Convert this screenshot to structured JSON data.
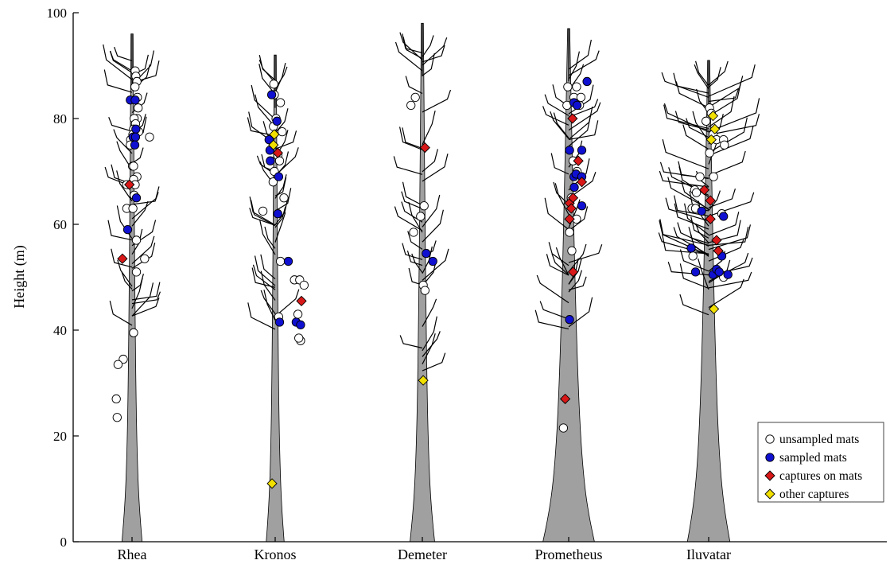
{
  "chart_data": {
    "type": "scatter",
    "ylabel": "Height (m)",
    "ylim": [
      0,
      100
    ],
    "yticks": [
      0,
      20,
      40,
      60,
      80,
      100
    ],
    "categories": [
      "Rhea",
      "Kronos",
      "Demeter",
      "Prometheus",
      "Iluvatar"
    ],
    "trees": [
      {
        "name": "Rhea",
        "crown_top": 96,
        "base_half_width": 0.18,
        "top_half_width": 0.02
      },
      {
        "name": "Kronos",
        "crown_top": 92,
        "base_half_width": 0.16,
        "top_half_width": 0.02
      },
      {
        "name": "Demeter",
        "crown_top": 98,
        "base_half_width": 0.22,
        "top_half_width": 0.02
      },
      {
        "name": "Prometheus",
        "crown_top": 97,
        "base_half_width": 0.46,
        "top_half_width": 0.02
      },
      {
        "name": "Iluvatar",
        "crown_top": 91,
        "base_half_width": 0.38,
        "top_half_width": 0.02
      }
    ],
    "legend_position": "bottom-right",
    "series": [
      {
        "name": "unsampled mats",
        "marker": "circle",
        "color": "#ffffff",
        "points": [
          {
            "tree": "Rhea",
            "offset": 0.18,
            "y": 89
          },
          {
            "tree": "Rhea",
            "offset": 0.22,
            "y": 88
          },
          {
            "tree": "Rhea",
            "offset": 0.28,
            "y": 87
          },
          {
            "tree": "Rhea",
            "offset": 0.17,
            "y": 86
          },
          {
            "tree": "Rhea",
            "offset": 0.31,
            "y": 84
          },
          {
            "tree": "Rhea",
            "offset": 0.35,
            "y": 82
          },
          {
            "tree": "Rhea",
            "offset": 0.3,
            "y": 80
          },
          {
            "tree": "Rhea",
            "offset": 0.12,
            "y": 80
          },
          {
            "tree": "Rhea",
            "offset": 0.2,
            "y": 79
          },
          {
            "tree": "Rhea",
            "offset": 0.09,
            "y": 78
          },
          {
            "tree": "Rhea",
            "offset": 0.38,
            "y": 77.5
          },
          {
            "tree": "Rhea",
            "offset": -0.08,
            "y": 76
          },
          {
            "tree": "Rhea",
            "offset": -0.1,
            "y": 75
          },
          {
            "tree": "Rhea",
            "offset": 0.05,
            "y": 77
          },
          {
            "tree": "Rhea",
            "offset": 1.0,
            "y": 76.5
          },
          {
            "tree": "Rhea",
            "offset": 0.03,
            "y": 71
          },
          {
            "tree": "Rhea",
            "offset": 0.09,
            "y": 71
          },
          {
            "tree": "Rhea",
            "offset": 0.28,
            "y": 69
          },
          {
            "tree": "Rhea",
            "offset": 0.09,
            "y": 68.5
          },
          {
            "tree": "Rhea",
            "offset": 0.18,
            "y": 67.5
          },
          {
            "tree": "Rhea",
            "offset": -0.3,
            "y": 67.5
          },
          {
            "tree": "Rhea",
            "offset": 0.12,
            "y": 65.5
          },
          {
            "tree": "Rhea",
            "offset": -0.3,
            "y": 63
          },
          {
            "tree": "Rhea",
            "offset": 0.05,
            "y": 63
          },
          {
            "tree": "Rhea",
            "offset": 0.25,
            "y": 57
          },
          {
            "tree": "Rhea",
            "offset": 0.25,
            "y": 51
          },
          {
            "tree": "Rhea",
            "offset": 0.72,
            "y": 53.5
          },
          {
            "tree": "Rhea",
            "offset": 0.09,
            "y": 39.5
          },
          {
            "tree": "Rhea",
            "offset": -0.5,
            "y": 34.5
          },
          {
            "tree": "Rhea",
            "offset": -0.8,
            "y": 33.5
          },
          {
            "tree": "Rhea",
            "offset": -0.9,
            "y": 27
          },
          {
            "tree": "Rhea",
            "offset": -0.85,
            "y": 23.5
          },
          {
            "tree": "Kronos",
            "offset": -0.08,
            "y": 86.5
          },
          {
            "tree": "Kronos",
            "offset": -0.05,
            "y": 84.5
          },
          {
            "tree": "Kronos",
            "offset": 0.3,
            "y": 83
          },
          {
            "tree": "Kronos",
            "offset": -0.1,
            "y": 78.5
          },
          {
            "tree": "Kronos",
            "offset": 0.05,
            "y": 80
          },
          {
            "tree": "Kronos",
            "offset": 0.4,
            "y": 77.5
          },
          {
            "tree": "Kronos",
            "offset": 0.15,
            "y": 73
          },
          {
            "tree": "Kronos",
            "offset": 0.25,
            "y": 72
          },
          {
            "tree": "Kronos",
            "offset": -0.05,
            "y": 70
          },
          {
            "tree": "Kronos",
            "offset": -0.12,
            "y": 68
          },
          {
            "tree": "Kronos",
            "offset": 0.5,
            "y": 65
          },
          {
            "tree": "Kronos",
            "offset": -0.7,
            "y": 62.5
          },
          {
            "tree": "Kronos",
            "offset": 0.3,
            "y": 53
          },
          {
            "tree": "Kronos",
            "offset": 1.1,
            "y": 49.5
          },
          {
            "tree": "Kronos",
            "offset": 1.4,
            "y": 49.5
          },
          {
            "tree": "Kronos",
            "offset": 1.65,
            "y": 48.5
          },
          {
            "tree": "Kronos",
            "offset": 1.3,
            "y": 43
          },
          {
            "tree": "Kronos",
            "offset": 1.45,
            "y": 38
          },
          {
            "tree": "Kronos",
            "offset": 1.35,
            "y": 38.5
          },
          {
            "tree": "Kronos",
            "offset": 0.2,
            "y": 42.5
          },
          {
            "tree": "Demeter",
            "offset": -0.4,
            "y": 84
          },
          {
            "tree": "Demeter",
            "offset": -0.65,
            "y": 82.5
          },
          {
            "tree": "Demeter",
            "offset": 0.1,
            "y": 63.5
          },
          {
            "tree": "Demeter",
            "offset": -0.1,
            "y": 61.5
          },
          {
            "tree": "Demeter",
            "offset": -0.5,
            "y": 58.5
          },
          {
            "tree": "Demeter",
            "offset": 0.05,
            "y": 48.5
          },
          {
            "tree": "Demeter",
            "offset": 0.15,
            "y": 47.5
          },
          {
            "tree": "Prometheus",
            "offset": -0.05,
            "y": 86
          },
          {
            "tree": "Prometheus",
            "offset": 0.45,
            "y": 86
          },
          {
            "tree": "Prometheus",
            "offset": 0.3,
            "y": 84
          },
          {
            "tree": "Prometheus",
            "offset": 0.7,
            "y": 84
          },
          {
            "tree": "Prometheus",
            "offset": 0.62,
            "y": 82.5
          },
          {
            "tree": "Prometheus",
            "offset": -0.1,
            "y": 82.5
          },
          {
            "tree": "Prometheus",
            "offset": 0.25,
            "y": 72
          },
          {
            "tree": "Prometheus",
            "offset": 0.48,
            "y": 70
          },
          {
            "tree": "Prometheus",
            "offset": 0.15,
            "y": 65
          },
          {
            "tree": "Prometheus",
            "offset": 0.45,
            "y": 61
          },
          {
            "tree": "Prometheus",
            "offset": 0.05,
            "y": 58.5
          },
          {
            "tree": "Prometheus",
            "offset": 0.18,
            "y": 55
          },
          {
            "tree": "Prometheus",
            "offset": -0.3,
            "y": 21.5
          },
          {
            "tree": "Iluvatar",
            "offset": 0.05,
            "y": 82
          },
          {
            "tree": "Iluvatar",
            "offset": 0.15,
            "y": 81
          },
          {
            "tree": "Iluvatar",
            "offset": -0.15,
            "y": 79.5
          },
          {
            "tree": "Iluvatar",
            "offset": 0.25,
            "y": 77
          },
          {
            "tree": "Iluvatar",
            "offset": 0.45,
            "y": 76
          },
          {
            "tree": "Iluvatar",
            "offset": 0.85,
            "y": 76
          },
          {
            "tree": "Iluvatar",
            "offset": 0.9,
            "y": 75
          },
          {
            "tree": "Iluvatar",
            "offset": 0.05,
            "y": 73.5
          },
          {
            "tree": "Iluvatar",
            "offset": -0.5,
            "y": 69
          },
          {
            "tree": "Iluvatar",
            "offset": 0.28,
            "y": 69
          },
          {
            "tree": "Iluvatar",
            "offset": -0.8,
            "y": 66.5
          },
          {
            "tree": "Iluvatar",
            "offset": -0.7,
            "y": 66
          },
          {
            "tree": "Iluvatar",
            "offset": -0.95,
            "y": 63
          },
          {
            "tree": "Iluvatar",
            "offset": -0.75,
            "y": 63
          },
          {
            "tree": "Iluvatar",
            "offset": 0.75,
            "y": 62
          },
          {
            "tree": "Iluvatar",
            "offset": -0.9,
            "y": 54
          },
          {
            "tree": "Iluvatar",
            "offset": 0.85,
            "y": 50
          }
        ]
      },
      {
        "name": "sampled mats",
        "marker": "circle",
        "color": "#1010d0",
        "points": [
          {
            "tree": "Rhea",
            "offset": -0.1,
            "y": 83.5
          },
          {
            "tree": "Rhea",
            "offset": 0.18,
            "y": 83.5
          },
          {
            "tree": "Rhea",
            "offset": 0.22,
            "y": 78
          },
          {
            "tree": "Rhea",
            "offset": 0.06,
            "y": 76.5
          },
          {
            "tree": "Rhea",
            "offset": 0.2,
            "y": 76.5
          },
          {
            "tree": "Rhea",
            "offset": 0.16,
            "y": 75
          },
          {
            "tree": "Rhea",
            "offset": 0.25,
            "y": 65
          },
          {
            "tree": "Rhea",
            "offset": -0.25,
            "y": 59
          },
          {
            "tree": "Kronos",
            "offset": -0.2,
            "y": 84.5
          },
          {
            "tree": "Kronos",
            "offset": 0.1,
            "y": 79.5
          },
          {
            "tree": "Kronos",
            "offset": -0.35,
            "y": 76
          },
          {
            "tree": "Kronos",
            "offset": -0.3,
            "y": 74
          },
          {
            "tree": "Kronos",
            "offset": -0.28,
            "y": 72
          },
          {
            "tree": "Kronos",
            "offset": 0.2,
            "y": 69
          },
          {
            "tree": "Kronos",
            "offset": 0.15,
            "y": 62
          },
          {
            "tree": "Kronos",
            "offset": 0.75,
            "y": 53
          },
          {
            "tree": "Kronos",
            "offset": 0.25,
            "y": 41.5
          },
          {
            "tree": "Kronos",
            "offset": 1.2,
            "y": 41.5
          },
          {
            "tree": "Kronos",
            "offset": 1.45,
            "y": 41
          },
          {
            "tree": "Demeter",
            "offset": 0.22,
            "y": 54.5
          },
          {
            "tree": "Demeter",
            "offset": 0.6,
            "y": 53
          },
          {
            "tree": "Prometheus",
            "offset": 0.3,
            "y": 83
          },
          {
            "tree": "Prometheus",
            "offset": 0.48,
            "y": 82.5
          },
          {
            "tree": "Prometheus",
            "offset": 1.05,
            "y": 87
          },
          {
            "tree": "Prometheus",
            "offset": 0.05,
            "y": 74
          },
          {
            "tree": "Prometheus",
            "offset": 0.75,
            "y": 74
          },
          {
            "tree": "Prometheus",
            "offset": 0.3,
            "y": 69
          },
          {
            "tree": "Prometheus",
            "offset": 0.42,
            "y": 69.5
          },
          {
            "tree": "Prometheus",
            "offset": 0.75,
            "y": 69
          },
          {
            "tree": "Prometheus",
            "offset": 0.32,
            "y": 67
          },
          {
            "tree": "Prometheus",
            "offset": 0.75,
            "y": 63.5
          },
          {
            "tree": "Prometheus",
            "offset": 0.05,
            "y": 42
          },
          {
            "tree": "Iluvatar",
            "offset": 0.85,
            "y": 61.5
          },
          {
            "tree": "Iluvatar",
            "offset": -0.4,
            "y": 62.5
          },
          {
            "tree": "Iluvatar",
            "offset": -1.0,
            "y": 55.5
          },
          {
            "tree": "Iluvatar",
            "offset": 0.75,
            "y": 54
          },
          {
            "tree": "Iluvatar",
            "offset": -0.75,
            "y": 51
          },
          {
            "tree": "Iluvatar",
            "offset": 0.25,
            "y": 50.5
          },
          {
            "tree": "Iluvatar",
            "offset": 0.45,
            "y": 51.5
          },
          {
            "tree": "Iluvatar",
            "offset": 0.6,
            "y": 51
          },
          {
            "tree": "Iluvatar",
            "offset": 1.1,
            "y": 50.5
          }
        ]
      },
      {
        "name": "captures on mats",
        "marker": "diamond",
        "color": "#d81818",
        "points": [
          {
            "tree": "Rhea",
            "offset": -0.15,
            "y": 67.5
          },
          {
            "tree": "Rhea",
            "offset": -0.55,
            "y": 53.5
          },
          {
            "tree": "Kronos",
            "offset": 0.15,
            "y": 73.5
          },
          {
            "tree": "Kronos",
            "offset": 1.5,
            "y": 45.5
          },
          {
            "tree": "Demeter",
            "offset": 0.15,
            "y": 74.5
          },
          {
            "tree": "Prometheus",
            "offset": 0.22,
            "y": 80
          },
          {
            "tree": "Prometheus",
            "offset": 0.55,
            "y": 72
          },
          {
            "tree": "Prometheus",
            "offset": 0.75,
            "y": 68
          },
          {
            "tree": "Prometheus",
            "offset": 0.05,
            "y": 64
          },
          {
            "tree": "Prometheus",
            "offset": 0.25,
            "y": 65
          },
          {
            "tree": "Prometheus",
            "offset": 0.15,
            "y": 63
          },
          {
            "tree": "Prometheus",
            "offset": 0.05,
            "y": 61
          },
          {
            "tree": "Prometheus",
            "offset": 0.25,
            "y": 51
          },
          {
            "tree": "Prometheus",
            "offset": -0.2,
            "y": 27
          },
          {
            "tree": "Iluvatar",
            "offset": -0.25,
            "y": 66.5
          },
          {
            "tree": "Iluvatar",
            "offset": 0.1,
            "y": 64.5
          },
          {
            "tree": "Iluvatar",
            "offset": 0.1,
            "y": 61
          },
          {
            "tree": "Iluvatar",
            "offset": 0.45,
            "y": 57
          },
          {
            "tree": "Iluvatar",
            "offset": 0.55,
            "y": 55
          }
        ]
      },
      {
        "name": "other captures",
        "marker": "diamond",
        "color": "#f2e000",
        "points": [
          {
            "tree": "Kronos",
            "offset": -0.05,
            "y": 77
          },
          {
            "tree": "Kronos",
            "offset": -0.1,
            "y": 75
          },
          {
            "tree": "Kronos",
            "offset": -0.18,
            "y": 11
          },
          {
            "tree": "Demeter",
            "offset": 0.05,
            "y": 30.5
          },
          {
            "tree": "Iluvatar",
            "offset": 0.25,
            "y": 80.5
          },
          {
            "tree": "Iluvatar",
            "offset": 0.35,
            "y": 78
          },
          {
            "tree": "Iluvatar",
            "offset": 0.15,
            "y": 76
          },
          {
            "tree": "Iluvatar",
            "offset": 0.3,
            "y": 44
          }
        ]
      }
    ]
  },
  "legend": {
    "items": [
      {
        "label": "unsampled mats",
        "marker": "circle",
        "color": "#ffffff"
      },
      {
        "label": "sampled mats",
        "marker": "circle",
        "color": "#1010d0"
      },
      {
        "label": "captures on mats",
        "marker": "diamond",
        "color": "#d81818"
      },
      {
        "label": "other captures",
        "marker": "diamond",
        "color": "#f2e000"
      }
    ]
  }
}
